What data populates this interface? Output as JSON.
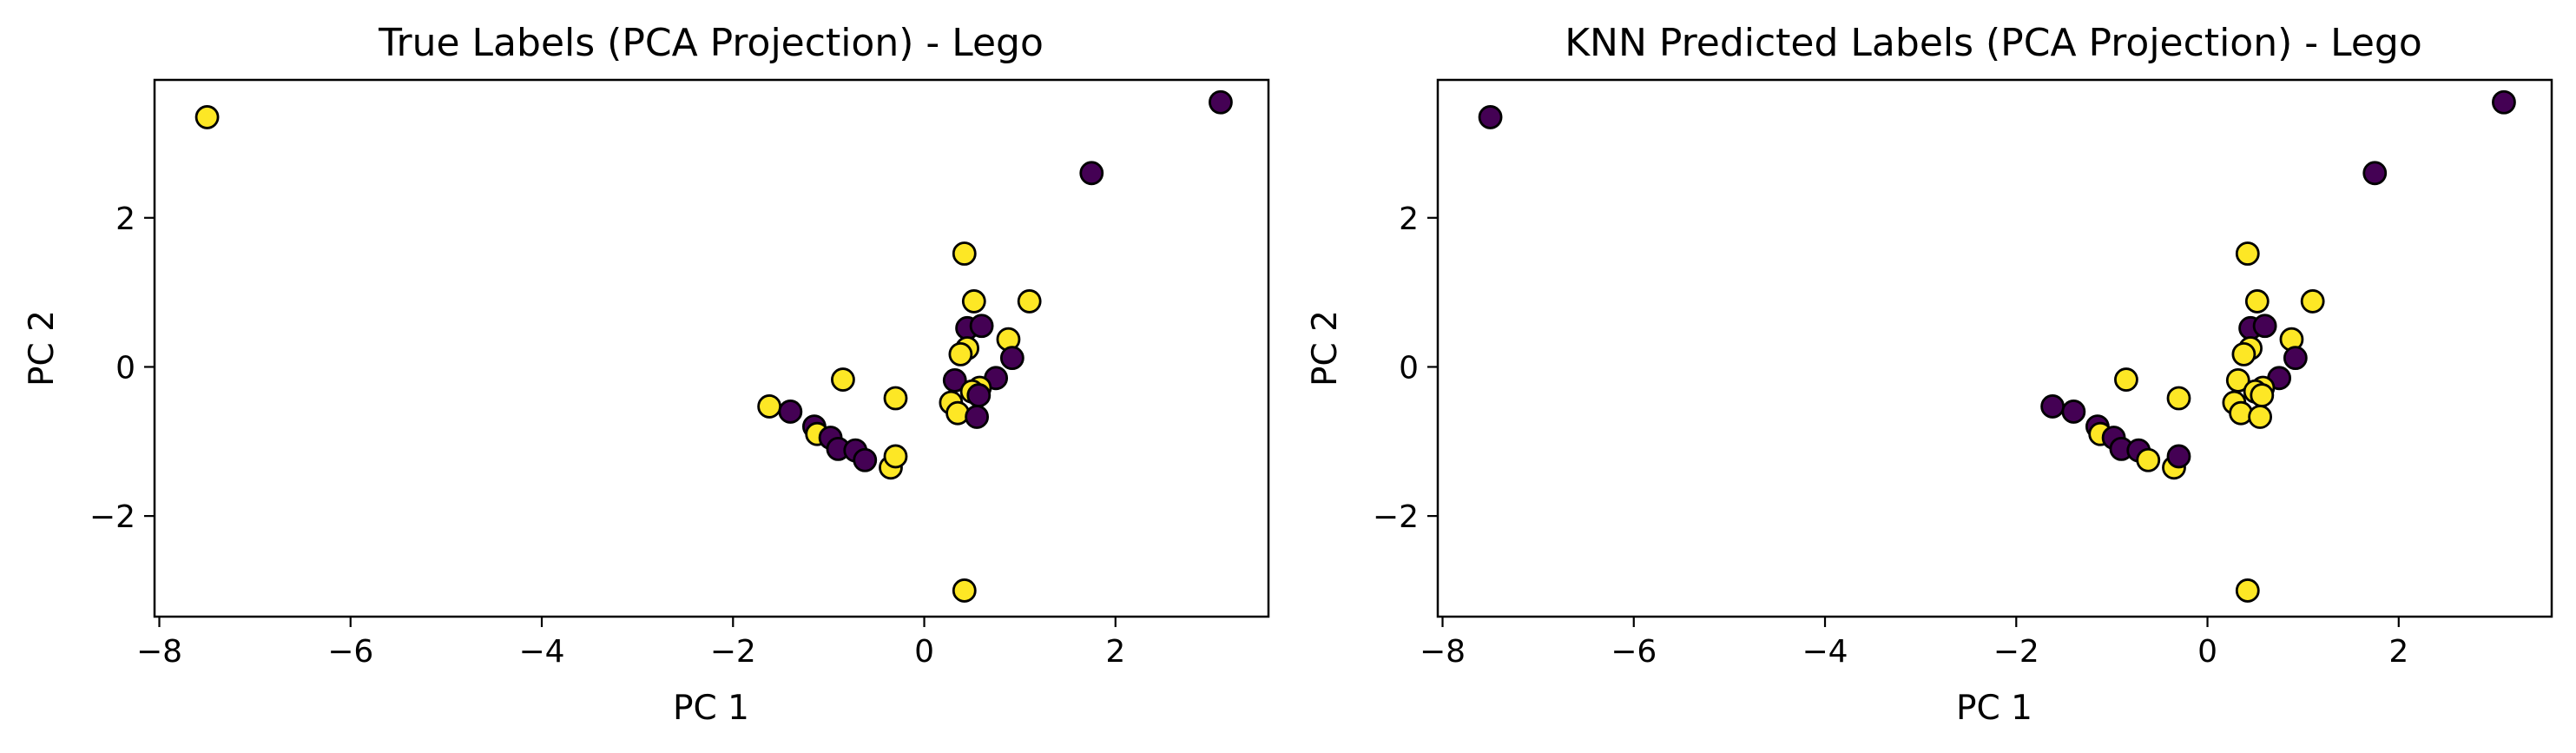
{
  "colors": {
    "class_0": "#440154",
    "class_1": "#fde725",
    "edge": "#000000"
  },
  "chart_data": [
    {
      "type": "scatter",
      "title": "True Labels (PCA Projection) - Lego",
      "xlabel": "PC 1",
      "ylabel": "PC 2",
      "xlim": [
        -8.05,
        3.6
      ],
      "ylim": [
        -3.35,
        3.85
      ],
      "xticks": [
        -8,
        -6,
        -4,
        -2,
        0,
        2
      ],
      "yticks": [
        -2,
        0,
        2
      ],
      "xtick_labels": [
        "−8",
        "−6",
        "−4",
        "−2",
        "0",
        "2"
      ],
      "ytick_labels": [
        "−2",
        "0",
        "2"
      ],
      "grid": false,
      "legend": "none",
      "points": [
        {
          "x": -7.5,
          "y": 3.35,
          "label": 1
        },
        {
          "x": 3.1,
          "y": 3.55,
          "label": 0
        },
        {
          "x": 1.75,
          "y": 2.6,
          "label": 0
        },
        {
          "x": 0.42,
          "y": 1.52,
          "label": 1
        },
        {
          "x": 1.1,
          "y": 0.88,
          "label": 1
        },
        {
          "x": 0.52,
          "y": 0.88,
          "label": 1
        },
        {
          "x": 0.45,
          "y": 0.52,
          "label": 0
        },
        {
          "x": 0.6,
          "y": 0.55,
          "label": 0
        },
        {
          "x": 0.88,
          "y": 0.37,
          "label": 1
        },
        {
          "x": 0.45,
          "y": 0.25,
          "label": 1
        },
        {
          "x": 0.38,
          "y": 0.17,
          "label": 1
        },
        {
          "x": 0.92,
          "y": 0.12,
          "label": 0
        },
        {
          "x": 0.75,
          "y": -0.15,
          "label": 0
        },
        {
          "x": 0.32,
          "y": -0.18,
          "label": 0
        },
        {
          "x": 0.58,
          "y": -0.28,
          "label": 1
        },
        {
          "x": 0.5,
          "y": -0.33,
          "label": 1
        },
        {
          "x": 0.57,
          "y": -0.38,
          "label": 0
        },
        {
          "x": 0.28,
          "y": -0.48,
          "label": 1
        },
        {
          "x": 0.35,
          "y": -0.62,
          "label": 1
        },
        {
          "x": 0.55,
          "y": -0.67,
          "label": 0
        },
        {
          "x": -0.3,
          "y": -0.42,
          "label": 1
        },
        {
          "x": -0.85,
          "y": -0.17,
          "label": 1
        },
        {
          "x": -1.62,
          "y": -0.53,
          "label": 1
        },
        {
          "x": -1.4,
          "y": -0.6,
          "label": 0
        },
        {
          "x": -1.15,
          "y": -0.8,
          "label": 0
        },
        {
          "x": -1.12,
          "y": -0.9,
          "label": 1
        },
        {
          "x": -0.98,
          "y": -0.95,
          "label": 0
        },
        {
          "x": -0.9,
          "y": -1.1,
          "label": 0
        },
        {
          "x": -0.72,
          "y": -1.12,
          "label": 0
        },
        {
          "x": -0.62,
          "y": -1.25,
          "label": 0
        },
        {
          "x": -0.35,
          "y": -1.35,
          "label": 1
        },
        {
          "x": -0.3,
          "y": -1.2,
          "label": 1
        },
        {
          "x": 0.42,
          "y": -3.0,
          "label": 1
        }
      ]
    },
    {
      "type": "scatter",
      "title": "KNN Predicted Labels (PCA Projection) - Lego",
      "xlabel": "PC 1",
      "ylabel": "PC 2",
      "xlim": [
        -8.05,
        3.6
      ],
      "ylim": [
        -3.35,
        3.85
      ],
      "xticks": [
        -8,
        -6,
        -4,
        -2,
        0,
        2
      ],
      "yticks": [
        -2,
        0,
        2
      ],
      "xtick_labels": [
        "−8",
        "−6",
        "−4",
        "−2",
        "0",
        "2"
      ],
      "ytick_labels": [
        "−2",
        "0",
        "2"
      ],
      "grid": false,
      "legend": "none",
      "points": [
        {
          "x": -7.5,
          "y": 3.35,
          "label": 0
        },
        {
          "x": 3.1,
          "y": 3.55,
          "label": 0
        },
        {
          "x": 1.75,
          "y": 2.6,
          "label": 0
        },
        {
          "x": 0.42,
          "y": 1.52,
          "label": 1
        },
        {
          "x": 1.1,
          "y": 0.88,
          "label": 1
        },
        {
          "x": 0.52,
          "y": 0.88,
          "label": 1
        },
        {
          "x": 0.45,
          "y": 0.52,
          "label": 0
        },
        {
          "x": 0.6,
          "y": 0.55,
          "label": 0
        },
        {
          "x": 0.88,
          "y": 0.37,
          "label": 1
        },
        {
          "x": 0.45,
          "y": 0.25,
          "label": 1
        },
        {
          "x": 0.38,
          "y": 0.17,
          "label": 1
        },
        {
          "x": 0.92,
          "y": 0.12,
          "label": 0
        },
        {
          "x": 0.75,
          "y": -0.15,
          "label": 0
        },
        {
          "x": 0.32,
          "y": -0.18,
          "label": 1
        },
        {
          "x": 0.58,
          "y": -0.28,
          "label": 1
        },
        {
          "x": 0.5,
          "y": -0.33,
          "label": 1
        },
        {
          "x": 0.57,
          "y": -0.38,
          "label": 1
        },
        {
          "x": 0.28,
          "y": -0.48,
          "label": 1
        },
        {
          "x": 0.35,
          "y": -0.62,
          "label": 1
        },
        {
          "x": 0.55,
          "y": -0.67,
          "label": 1
        },
        {
          "x": -0.3,
          "y": -0.42,
          "label": 1
        },
        {
          "x": -0.85,
          "y": -0.17,
          "label": 1
        },
        {
          "x": -1.62,
          "y": -0.53,
          "label": 0
        },
        {
          "x": -1.4,
          "y": -0.6,
          "label": 0
        },
        {
          "x": -1.15,
          "y": -0.8,
          "label": 0
        },
        {
          "x": -1.12,
          "y": -0.9,
          "label": 1
        },
        {
          "x": -0.98,
          "y": -0.95,
          "label": 0
        },
        {
          "x": -0.9,
          "y": -1.1,
          "label": 0
        },
        {
          "x": -0.72,
          "y": -1.12,
          "label": 0
        },
        {
          "x": -0.62,
          "y": -1.25,
          "label": 1
        },
        {
          "x": -0.35,
          "y": -1.35,
          "label": 1
        },
        {
          "x": -0.3,
          "y": -1.2,
          "label": 0
        },
        {
          "x": 0.42,
          "y": -3.0,
          "label": 1
        }
      ]
    }
  ]
}
